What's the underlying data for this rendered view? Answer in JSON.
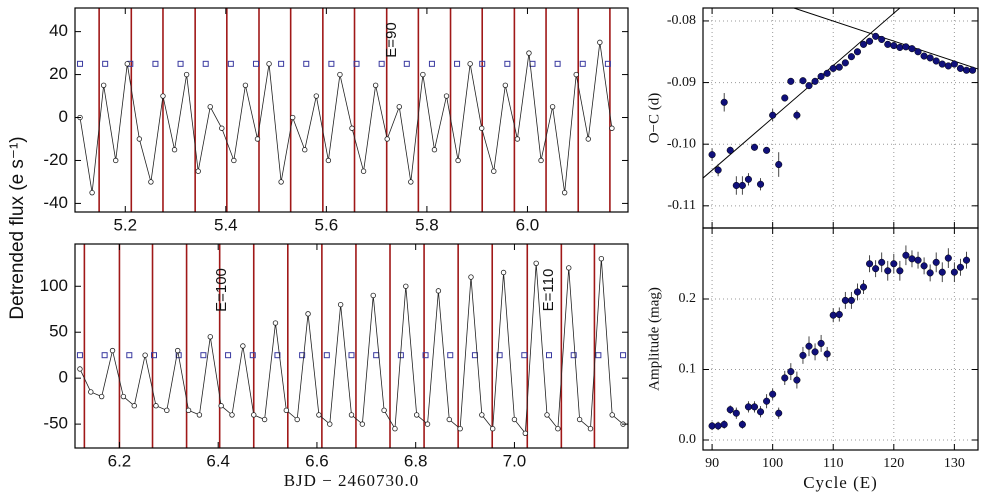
{
  "chart_data": [
    {
      "type": "line",
      "xlim": [
        5.1,
        6.2
      ],
      "ylim": [
        -44,
        51
      ],
      "xticks": [
        5.2,
        5.4,
        5.6,
        5.8,
        {
          "value": 6,
          "label": "6.0"
        }
      ],
      "yticks": [
        40,
        20,
        0,
        -20,
        -40
      ],
      "ylabel": "Detrended flux (e s⁻¹)",
      "annotations": [
        "E=90"
      ],
      "color": "#222222",
      "vline_color": "#a01818",
      "ref_color": "#3a3aa0",
      "x": [
        5.11,
        5.134,
        5.157,
        5.181,
        5.204,
        5.228,
        5.251,
        5.275,
        5.298,
        5.322,
        5.345,
        5.369,
        5.392,
        5.416,
        5.439,
        5.463,
        5.486,
        5.51,
        5.533,
        5.557,
        5.58,
        5.604,
        5.627,
        5.651,
        5.674,
        5.698,
        5.721,
        5.745,
        5.768,
        5.792,
        5.815,
        5.839,
        5.862,
        5.886,
        5.909,
        5.933,
        5.956,
        5.98,
        6.003,
        6.027,
        6.05,
        6.074,
        6.097,
        6.121,
        6.144,
        6.168
      ],
      "values": [
        0,
        -35,
        15,
        -20,
        25,
        -10,
        -30,
        10,
        -15,
        20,
        -25,
        5,
        -5,
        -20,
        15,
        -10,
        25,
        -30,
        0,
        -15,
        10,
        -20,
        20,
        -5,
        -25,
        15,
        -10,
        5,
        -30,
        20,
        -15,
        10,
        -20,
        25,
        -5,
        -25,
        15,
        -10,
        30,
        -20,
        5,
        -35,
        20,
        -10,
        35,
        -5
      ],
      "vlines": [
        5.148,
        5.212,
        5.275,
        5.339,
        5.402,
        5.466,
        5.529,
        5.593,
        5.656,
        5.72,
        5.783,
        5.847,
        5.91,
        5.974,
        6.037,
        6.101,
        6.164
      ],
      "ref": {
        "y": 25,
        "x": [
          5.11,
          5.16,
          5.21,
          5.26,
          5.31,
          5.36,
          5.41,
          5.46,
          5.51,
          5.56,
          5.61,
          5.66,
          5.71,
          5.76,
          5.81,
          5.86,
          5.91,
          5.96,
          6.01,
          6.06,
          6.11,
          6.16
        ]
      }
    },
    {
      "type": "line",
      "xlim": [
        6.11,
        7.23
      ],
      "ylim": [
        -76,
        146
      ],
      "xticks": [
        6.2,
        6.4,
        6.6,
        6.8,
        {
          "value": 7,
          "label": "7.0"
        }
      ],
      "yticks": [
        100,
        50,
        0,
        -50
      ],
      "xlabel": "BJD − 2460730.0",
      "annotations": [
        "E=100",
        "E=110"
      ],
      "color": "#222222",
      "vline_color": "#a01818",
      "ref_color": "#3a3aa0",
      "x": [
        6.12,
        6.142,
        6.164,
        6.186,
        6.208,
        6.23,
        6.252,
        6.274,
        6.296,
        6.318,
        6.34,
        6.362,
        6.384,
        6.406,
        6.428,
        6.45,
        6.472,
        6.494,
        6.516,
        6.538,
        6.56,
        6.582,
        6.604,
        6.626,
        6.648,
        6.67,
        6.692,
        6.714,
        6.736,
        6.758,
        6.78,
        6.802,
        6.824,
        6.846,
        6.868,
        6.89,
        6.912,
        6.934,
        6.956,
        6.978,
        7.0,
        7.022,
        7.044,
        7.066,
        7.088,
        7.11,
        7.132,
        7.154,
        7.176,
        7.198,
        7.22
      ],
      "values": [
        10,
        -15,
        -20,
        30,
        -20,
        -30,
        25,
        -30,
        -35,
        30,
        -35,
        -40,
        45,
        -30,
        -40,
        35,
        -40,
        -45,
        60,
        -35,
        -45,
        70,
        -40,
        -50,
        80,
        -40,
        -50,
        90,
        -35,
        -55,
        100,
        -40,
        -50,
        95,
        -45,
        -55,
        110,
        -40,
        -55,
        115,
        -45,
        -60,
        125,
        -40,
        -55,
        120,
        -45,
        -55,
        130,
        -40,
        -50
      ],
      "vlines": [
        6.129,
        6.2,
        6.267,
        6.336,
        6.403,
        6.472,
        6.541,
        6.61,
        6.679,
        6.748,
        6.817,
        6.886,
        6.955,
        7.026,
        7.095,
        7.162
      ],
      "ref": {
        "y": 25,
        "x": [
          6.12,
          6.17,
          6.22,
          6.27,
          6.32,
          6.37,
          6.42,
          6.47,
          6.52,
          6.57,
          6.62,
          6.67,
          6.72,
          6.77,
          6.82,
          6.87,
          6.92,
          6.97,
          7.02,
          7.07,
          7.12,
          7.17,
          7.22
        ]
      }
    },
    {
      "type": "scatter",
      "xlim": [
        88.5,
        133.9
      ],
      "ylim": [
        -0.1136,
        -0.0779
      ],
      "grid": true,
      "xticklabels": false,
      "xticks": [
        90,
        100,
        110,
        120,
        130
      ],
      "yticks": [
        -0.08,
        -0.09,
        {
          "value": -0.1,
          "label": "-0.10"
        },
        -0.11
      ],
      "ylabel": "O−C (d)",
      "color": "#10107a",
      "x": [
        90,
        91,
        92,
        93,
        94,
        95,
        96,
        97,
        98,
        99,
        100,
        101,
        102,
        103,
        104,
        105,
        106,
        107,
        108,
        109,
        110,
        111,
        112,
        113,
        114,
        115,
        116,
        117,
        118,
        119,
        120,
        121,
        122,
        123,
        124,
        125,
        126,
        127,
        128,
        129,
        130,
        131,
        132,
        133
      ],
      "values": [
        -0.1017,
        -0.1042,
        -0.0932,
        -0.101,
        -0.1067,
        -0.1067,
        -0.1057,
        -0.1005,
        -0.1065,
        -0.101,
        -0.0953,
        -0.1033,
        -0.0925,
        -0.0898,
        -0.0953,
        -0.0897,
        -0.0905,
        -0.0898,
        -0.089,
        -0.0885,
        -0.0877,
        -0.0875,
        -0.0868,
        -0.0858,
        -0.085,
        -0.0838,
        -0.0833,
        -0.0825,
        -0.083,
        -0.0838,
        -0.084,
        -0.0843,
        -0.0842,
        -0.0845,
        -0.085,
        -0.0857,
        -0.086,
        -0.0865,
        -0.087,
        -0.0873,
        -0.087,
        -0.0877,
        -0.088,
        -0.088
      ],
      "errors": [
        0.001,
        0.001,
        0.0015,
        0.0006,
        0.0015,
        0.0015,
        0.001,
        0.0005,
        0.001,
        0.0005,
        0.001,
        0.002,
        0.0005,
        0.0005,
        0.0008,
        0.0005,
        0.0005,
        0.0005,
        0.0004,
        0.0004,
        0.0004,
        0.0004,
        0.0004,
        0.0004,
        0.0004,
        0.0004,
        0.0004,
        0.0004,
        0.0004,
        0.0004,
        0.0004,
        0.0004,
        0.0004,
        0.0004,
        0.0004,
        0.0004,
        0.0004,
        0.0004,
        0.0004,
        0.0004,
        0.0004,
        0.0004,
        0.0004,
        0.0004
      ],
      "fits": [
        {
          "x": [
            88.5,
            121
          ],
          "y": [
            -0.1055,
            -0.0779
          ]
        },
        {
          "x": [
            103.5,
            133.9
          ],
          "y": [
            -0.0779,
            -0.0878
          ]
        }
      ]
    },
    {
      "type": "scatter",
      "xlim": [
        88.5,
        133.9
      ],
      "ylim": [
        -0.0142,
        0.3007
      ],
      "grid": true,
      "xticks": [
        90,
        100,
        110,
        120,
        130
      ],
      "yticks": [
        {
          "value": 0,
          "label": "0.0"
        },
        0.1,
        0.2
      ],
      "xlabel": "Cycle (E)",
      "ylabel": "Amplitude (mag)",
      "color": "#10107a",
      "x": [
        90,
        91,
        92,
        93,
        94,
        95,
        96,
        97,
        98,
        99,
        100,
        101,
        102,
        103,
        104,
        105,
        106,
        107,
        108,
        109,
        110,
        111,
        112,
        113,
        114,
        115,
        116,
        117,
        118,
        119,
        120,
        121,
        122,
        123,
        124,
        125,
        126,
        127,
        128,
        129,
        130,
        131,
        132
      ],
      "values": [
        0.02,
        0.02,
        0.022,
        0.043,
        0.038,
        0.022,
        0.047,
        0.047,
        0.04,
        0.055,
        0.065,
        0.038,
        0.088,
        0.097,
        0.085,
        0.12,
        0.133,
        0.125,
        0.137,
        0.122,
        0.177,
        0.178,
        0.198,
        0.198,
        0.21,
        0.217,
        0.25,
        0.243,
        0.252,
        0.24,
        0.25,
        0.24,
        0.262,
        0.257,
        0.255,
        0.247,
        0.237,
        0.252,
        0.238,
        0.258,
        0.238,
        0.245,
        0.255
      ],
      "errors": [
        0.006,
        0.006,
        0.006,
        0.006,
        0.008,
        0.006,
        0.008,
        0.008,
        0.008,
        0.01,
        0.008,
        0.008,
        0.01,
        0.012,
        0.012,
        0.012,
        0.014,
        0.012,
        0.012,
        0.01,
        0.01,
        0.01,
        0.012,
        0.012,
        0.012,
        0.01,
        0.012,
        0.012,
        0.014,
        0.014,
        0.014,
        0.014,
        0.014,
        0.012,
        0.012,
        0.012,
        0.012,
        0.014,
        0.014,
        0.014,
        0.014,
        0.012,
        0.012
      ]
    }
  ]
}
